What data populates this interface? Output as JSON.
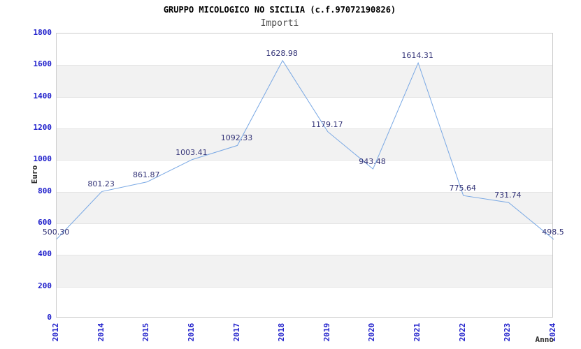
{
  "header": {
    "title": "GRUPPO MICOLOGICO NO SICILIA (c.f.97072190826)",
    "subtitle": "Importi"
  },
  "chart_data": {
    "type": "line",
    "title": "GRUPPO MICOLOGICO NO SICILIA (c.f.97072190826)",
    "subtitle": "Importi",
    "xlabel": "Anno",
    "ylabel": "Euro",
    "categories": [
      "2012",
      "2014",
      "2015",
      "2016",
      "2017",
      "2018",
      "2019",
      "2020",
      "2021",
      "2022",
      "2023",
      "2024"
    ],
    "values": [
      500.3,
      801.23,
      861.87,
      1003.41,
      1092.33,
      1628.98,
      1179.17,
      943.48,
      1614.31,
      775.64,
      731.74,
      498.5
    ],
    "point_labels": [
      "500.30",
      "801.23",
      "861.87",
      "1003.41",
      "1092.33",
      "1628.98",
      "1179.17",
      "943.48",
      "1614.31",
      "775.64",
      "731.74",
      "498.5"
    ],
    "ylim": [
      0,
      1800
    ],
    "ytick_step": 200,
    "grid": true,
    "legend": "none",
    "colors": {
      "line": "#79a8e4",
      "tick_label": "#2222cc",
      "data_label": "#333377",
      "band": "#f2f2f2",
      "gridline": "#e4e4e4",
      "plot_border": "#cccccc",
      "title": "#000000",
      "subtitle": "#4d4d4d"
    }
  }
}
